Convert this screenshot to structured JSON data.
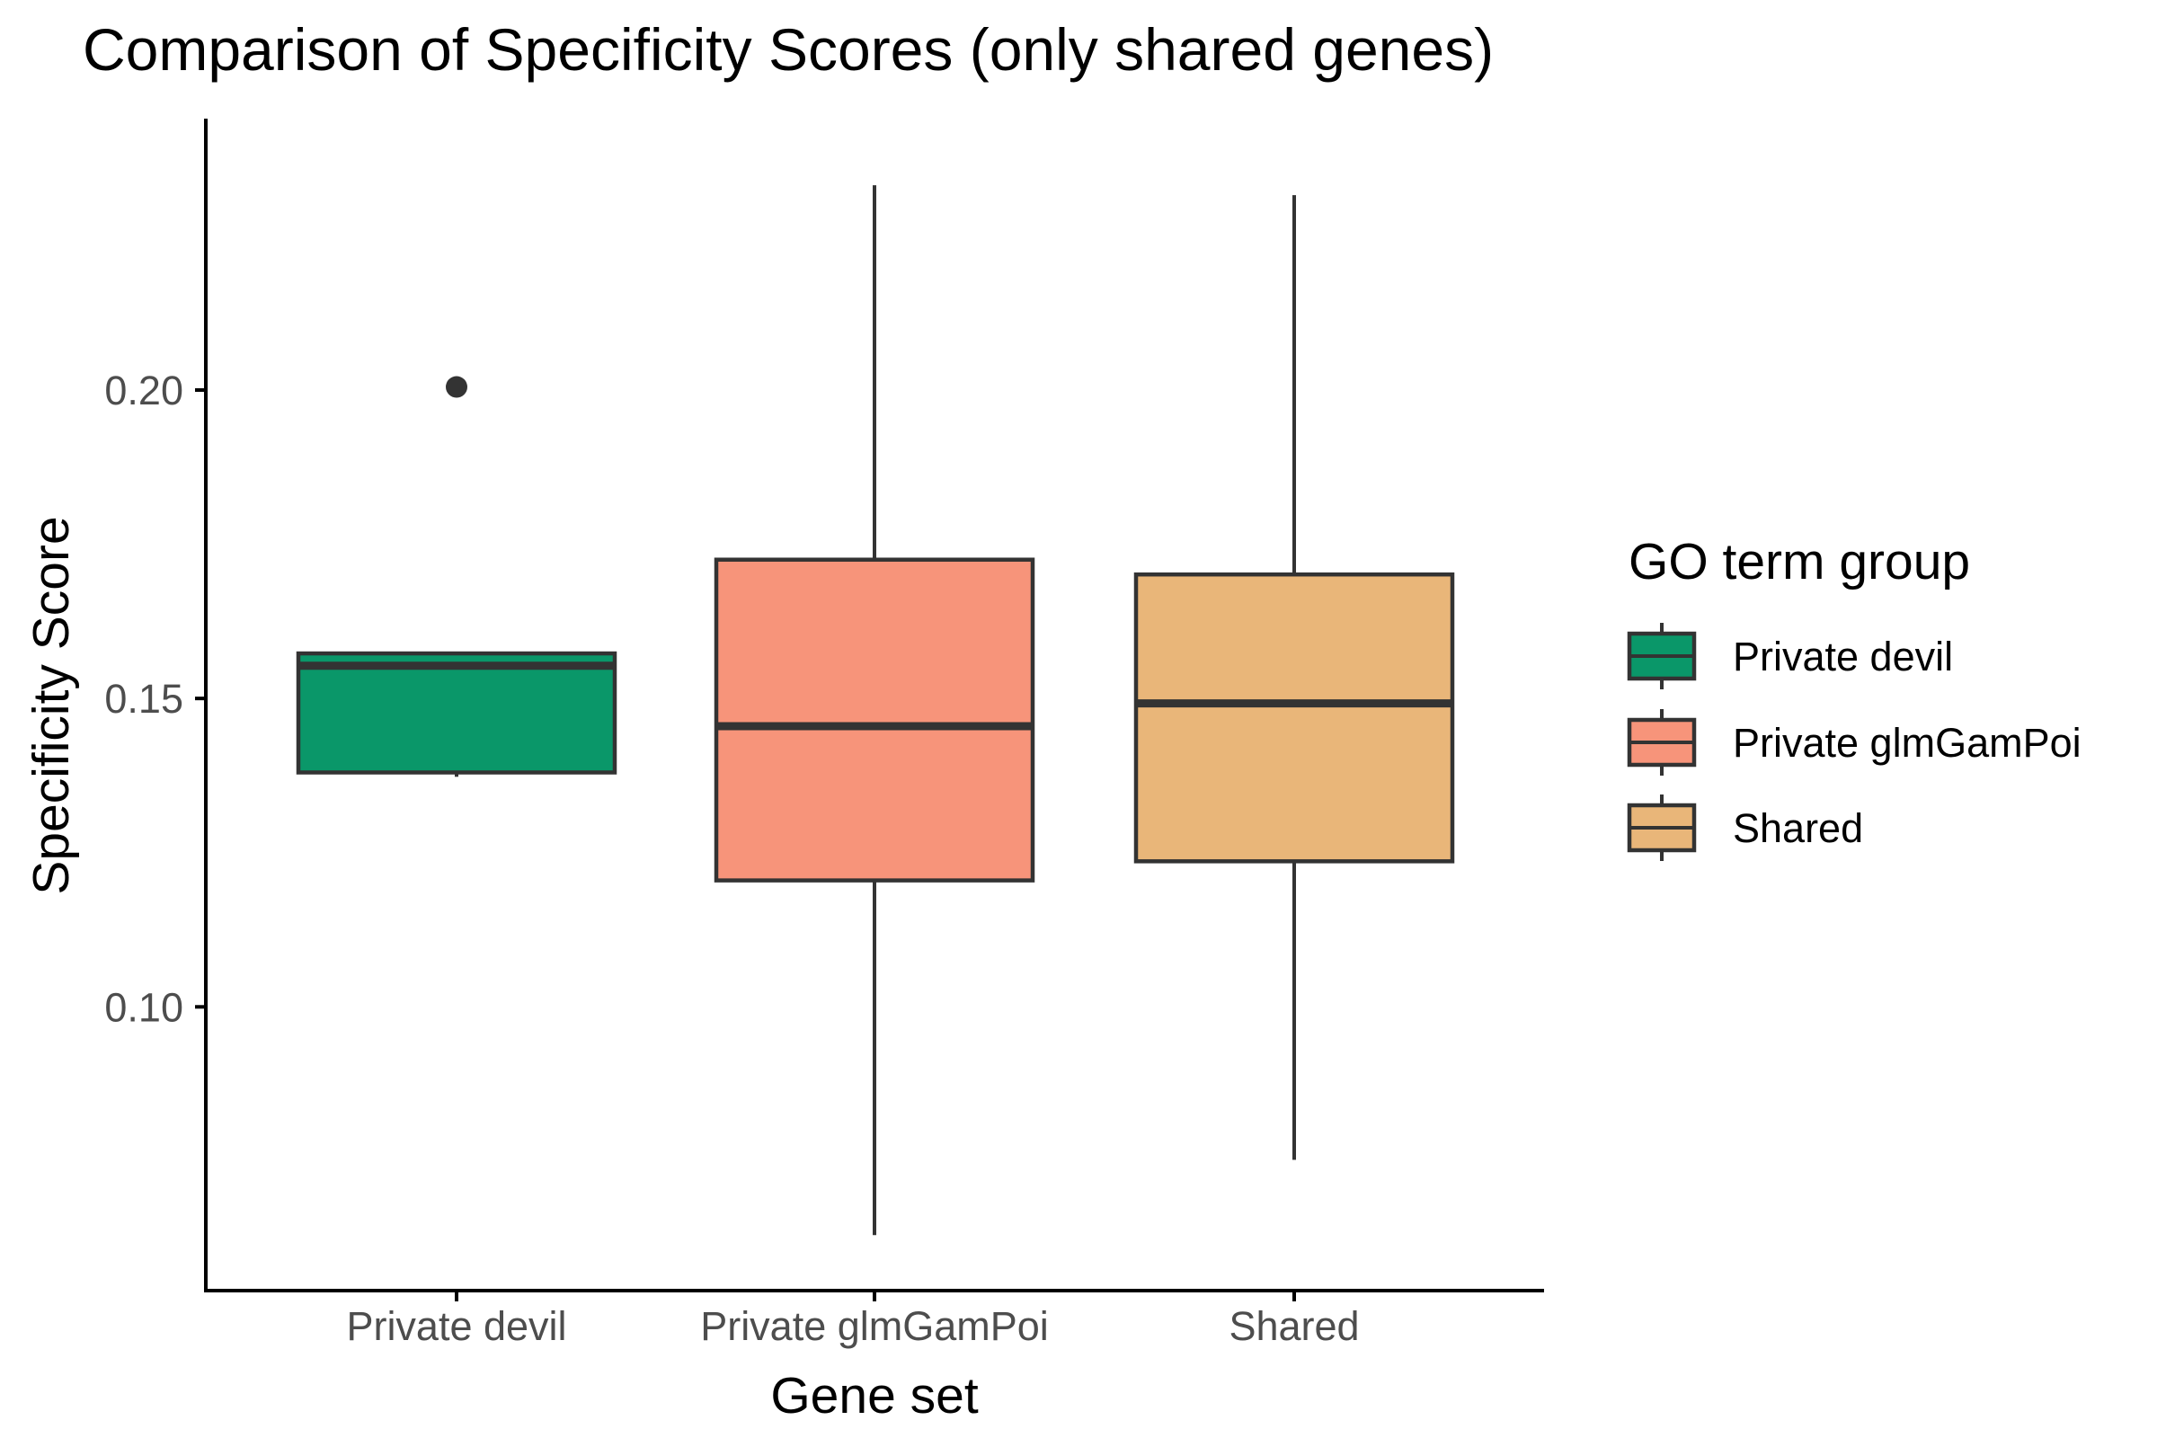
{
  "chart_data": {
    "type": "boxplot",
    "title": "Comparison of Specificity Scores (only shared genes)",
    "xlabel": "Gene set",
    "ylabel": "Specificity Score",
    "ylim": [
      0.054,
      0.244
    ],
    "yticks": [
      0.1,
      0.15,
      0.2
    ],
    "ytick_labels": [
      "0.10",
      "0.15",
      "0.20"
    ],
    "categories": [
      "Private devil",
      "Private glmGamPoi",
      "Shared"
    ],
    "series": [
      {
        "category": "Private devil",
        "fill": "#0a9769",
        "min": 0.1373,
        "q1": 0.138,
        "median": 0.1553,
        "q3": 0.1573,
        "max": 0.1573,
        "outliers": [
          0.2005
        ]
      },
      {
        "category": "Private glmGamPoi",
        "fill": "#f7947a",
        "min": 0.063,
        "q1": 0.1205,
        "median": 0.1455,
        "q3": 0.1725,
        "max": 0.2332
      },
      {
        "category": "Shared",
        "fill": "#e9b679",
        "min": 0.0752,
        "q1": 0.1236,
        "median": 0.1492,
        "q3": 0.1701,
        "max": 0.2316
      }
    ],
    "legend": {
      "title": "GO term group",
      "position": "right",
      "entries": [
        "Private devil",
        "Private glmGamPoi",
        "Shared"
      ]
    },
    "grid": false,
    "colors": {
      "box_stroke": "#333333",
      "axis_line": "#000000",
      "tick_text": "#4d4d4d"
    }
  }
}
